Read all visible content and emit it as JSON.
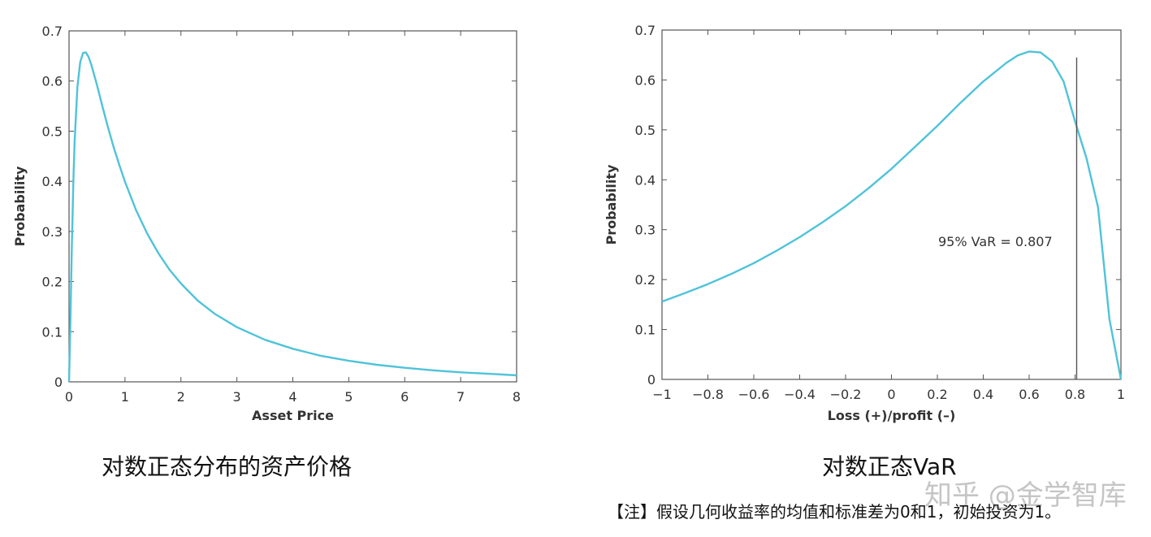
{
  "chart_data": [
    {
      "type": "line",
      "title": "",
      "xlabel": "Asset Price",
      "ylabel": "Probability",
      "xlim": [
        0,
        8
      ],
      "ylim": [
        0,
        0.7
      ],
      "xticks": [
        "0",
        "1",
        "2",
        "3",
        "4",
        "5",
        "6",
        "7",
        "8"
      ],
      "yticks": [
        "0",
        "0.1",
        "0.2",
        "0.3",
        "0.4",
        "0.5",
        "0.6",
        "0.7"
      ],
      "grid": false,
      "series": [
        {
          "color": "#4FC3D9",
          "x": [
            0,
            0.02,
            0.05,
            0.08,
            0.1,
            0.15,
            0.2,
            0.25,
            0.3,
            0.35,
            0.4,
            0.5,
            0.6,
            0.7,
            0.8,
            0.9,
            1.0,
            1.2,
            1.4,
            1.6,
            1.8,
            2.0,
            2.3,
            2.6,
            3.0,
            3.5,
            4.0,
            4.5,
            5.0,
            5.5,
            6.0,
            6.5,
            7.0,
            7.5,
            8.0
          ],
          "y": [
            0,
            0.098,
            0.268,
            0.41,
            0.48,
            0.588,
            0.638,
            0.656,
            0.657,
            0.648,
            0.632,
            0.592,
            0.548,
            0.506,
            0.467,
            0.432,
            0.399,
            0.342,
            0.295,
            0.256,
            0.223,
            0.196,
            0.162,
            0.136,
            0.109,
            0.084,
            0.066,
            0.052,
            0.042,
            0.034,
            0.028,
            0.023,
            0.019,
            0.016,
            0.013
          ]
        }
      ]
    },
    {
      "type": "line",
      "title": "",
      "xlabel": "Loss (+)/profit (–)",
      "ylabel": "Probability",
      "xlim": [
        -1,
        1
      ],
      "ylim": [
        0,
        0.7
      ],
      "xticks": [
        "−1",
        "−0.8",
        "−0.6",
        "−0.4",
        "−0.2",
        "0",
        "0.2",
        "0.4",
        "0.6",
        "0.8",
        "1"
      ],
      "yticks": [
        "0",
        "0.1",
        "0.2",
        "0.3",
        "0.4",
        "0.5",
        "0.6",
        "0.7"
      ],
      "grid": false,
      "series": [
        {
          "color": "#4FC3D9",
          "x": [
            -1.0,
            -0.9,
            -0.8,
            -0.7,
            -0.6,
            -0.5,
            -0.4,
            -0.3,
            -0.2,
            -0.1,
            0.0,
            0.1,
            0.2,
            0.3,
            0.4,
            0.5,
            0.55,
            0.6,
            0.65,
            0.7,
            0.75,
            0.8,
            0.85,
            0.9,
            0.95,
            1.0
          ],
          "y": [
            0.156,
            0.173,
            0.191,
            0.211,
            0.233,
            0.258,
            0.285,
            0.315,
            0.347,
            0.383,
            0.422,
            0.465,
            0.508,
            0.554,
            0.597,
            0.634,
            0.649,
            0.657,
            0.655,
            0.637,
            0.597,
            0.517,
            0.443,
            0.345,
            0.12,
            0.0
          ]
        }
      ],
      "var_line": {
        "x": 0.807,
        "y_top": 0.645
      },
      "annotation": "95% VaR = 0.807"
    }
  ],
  "captions": {
    "left": "对数正态分布的资产价格",
    "right": "对数正态VaR"
  },
  "watermark": "知乎 @金学智库",
  "note": "【注】假设几何收益率的均值和标准差为0和1，初始投资为1。",
  "colors": {
    "curve": "#4FC3D9",
    "axis": "#555555",
    "text": "#333333"
  }
}
